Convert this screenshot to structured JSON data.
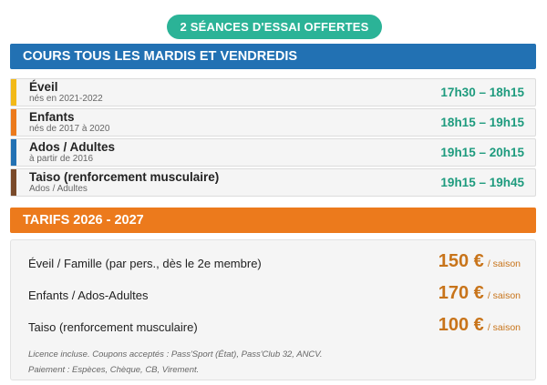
{
  "badge": "2 SÉANCES D'ESSAI OFFERTES",
  "schedule": {
    "header": "COURS TOUS LES MARDIS ET VENDREDIS",
    "rows": [
      {
        "title": "Éveil",
        "sub": "nés en 2021-2022",
        "time": "17h30 – 18h15",
        "color": "#f2b918"
      },
      {
        "title": "Enfants",
        "sub": "nés de 2017 à 2020",
        "time": "18h15 – 19h15",
        "color": "#ec7a1c"
      },
      {
        "title": "Ados / Adultes",
        "sub": "à partir de 2016",
        "time": "19h15 – 20h15",
        "color": "#2271b3"
      },
      {
        "title": "Taiso (renforcement musculaire)",
        "sub": "Ados / Adultes",
        "time": "19h15 – 19h45",
        "color": "#7a4a2a"
      }
    ]
  },
  "pricing": {
    "header": "TARIFS 2026 - 2027",
    "items": [
      {
        "label": "Éveil / Famille (par pers., dès le 2e membre)",
        "amount": "150 €",
        "unit": "/ saison"
      },
      {
        "label": "Enfants / Ados-Adultes",
        "amount": "170 €",
        "unit": "/ saison"
      },
      {
        "label": "Taiso (renforcement musculaire)",
        "amount": "100 €",
        "unit": "/ saison"
      }
    ],
    "note_license": "Licence incluse. Coupons acceptés : Pass'Sport (État), Pass'Club 32, ANCV.",
    "note_payment": "Paiement : Espèces, Chèque, CB, Virement."
  }
}
